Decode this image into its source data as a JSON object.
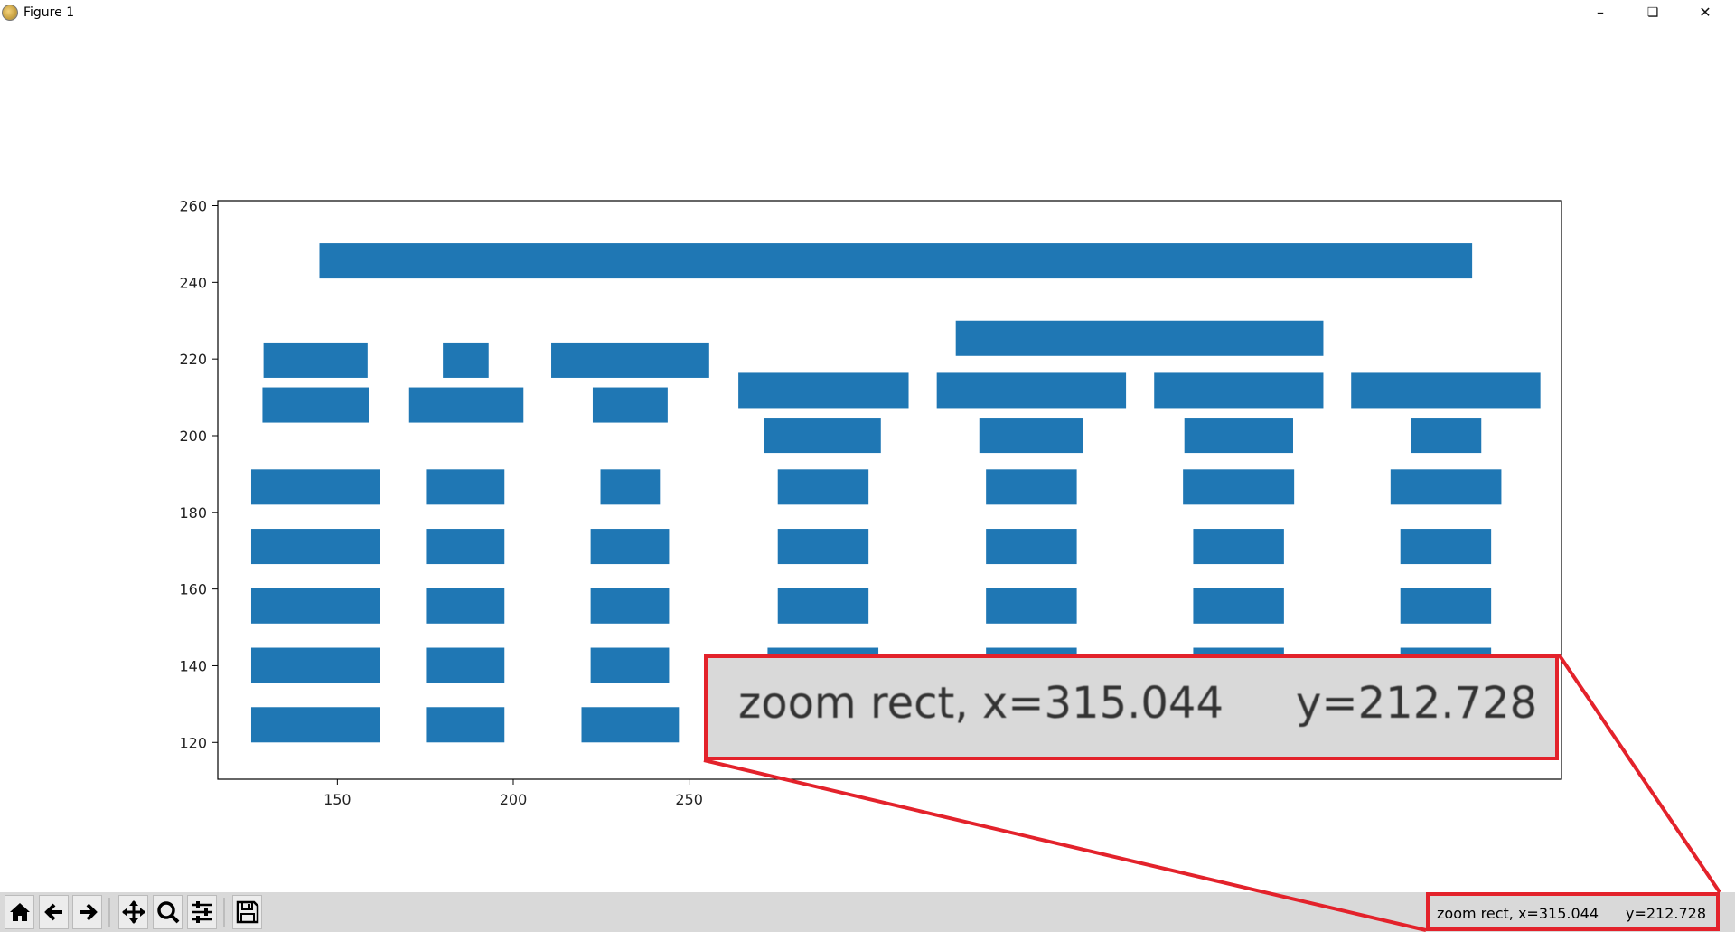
{
  "window": {
    "title": "Figure 1",
    "controls": {
      "minimize": "–",
      "restore": "❏",
      "close": "✕"
    }
  },
  "toolbar": {
    "buttons": [
      {
        "name": "home",
        "icon": "home-icon",
        "glyph": "⌂"
      },
      {
        "name": "back",
        "icon": "arrow-left-icon",
        "glyph": "←"
      },
      {
        "name": "forward",
        "icon": "arrow-right-icon",
        "glyph": "→"
      },
      {
        "name": "pan",
        "icon": "move-icon",
        "glyph": "✛"
      },
      {
        "name": "zoom",
        "icon": "magnifier-icon",
        "glyph": "⌕"
      },
      {
        "name": "configure-subplots",
        "icon": "sliders-icon",
        "glyph": "☰"
      },
      {
        "name": "save",
        "icon": "floppy-disk-icon",
        "glyph": "💾"
      }
    ]
  },
  "status": {
    "mode": "zoom rect, x=315.044",
    "y": "y=212.728"
  },
  "callout": {
    "mode": "zoom rect, x=315.044",
    "y": "y=212.728",
    "border_color": "#e3222b"
  },
  "chart_data": {
    "type": "bar",
    "orientation": "horizontal-broken-bars",
    "color": "#1f77b4",
    "xlim": [
      116,
      498
    ],
    "ylim": [
      110.4,
      261.3
    ],
    "xticks": [
      "150",
      "200",
      "250"
    ],
    "yticks": [
      "120",
      "140",
      "160",
      "180",
      "200",
      "220",
      "240",
      "260"
    ],
    "bar_height": 9.2,
    "bars": [
      {
        "x0": 144.9,
        "x1": 472.6,
        "y": 241.0
      },
      {
        "x0": 129.0,
        "x1": 158.6,
        "y": 215.1
      },
      {
        "x0": 128.7,
        "x1": 158.9,
        "y": 203.4
      },
      {
        "x0": 125.5,
        "x1": 162.1,
        "y": 182.0
      },
      {
        "x0": 125.5,
        "x1": 162.1,
        "y": 166.5
      },
      {
        "x0": 125.5,
        "x1": 162.1,
        "y": 151.0
      },
      {
        "x0": 125.5,
        "x1": 162.1,
        "y": 135.5
      },
      {
        "x0": 125.5,
        "x1": 162.1,
        "y": 120.0
      },
      {
        "x0": 180.0,
        "x1": 193.0,
        "y": 215.1
      },
      {
        "x0": 170.4,
        "x1": 202.9,
        "y": 203.4
      },
      {
        "x0": 175.2,
        "x1": 197.5,
        "y": 182.0
      },
      {
        "x0": 175.2,
        "x1": 197.5,
        "y": 166.5
      },
      {
        "x0": 175.2,
        "x1": 197.5,
        "y": 151.0
      },
      {
        "x0": 175.2,
        "x1": 197.5,
        "y": 135.5
      },
      {
        "x0": 175.2,
        "x1": 197.5,
        "y": 120.0
      },
      {
        "x0": 210.8,
        "x1": 255.7,
        "y": 215.1
      },
      {
        "x0": 222.6,
        "x1": 243.9,
        "y": 203.4
      },
      {
        "x0": 224.8,
        "x1": 241.7,
        "y": 182.0
      },
      {
        "x0": 222.0,
        "x1": 244.3,
        "y": 166.5
      },
      {
        "x0": 222.0,
        "x1": 244.3,
        "y": 151.0
      },
      {
        "x0": 222.0,
        "x1": 244.3,
        "y": 135.5
      },
      {
        "x0": 219.4,
        "x1": 247.1,
        "y": 120.0
      },
      {
        "x0": 264.0,
        "x1": 312.4,
        "y": 207.2
      },
      {
        "x0": 271.3,
        "x1": 304.5,
        "y": 195.5
      },
      {
        "x0": 275.2,
        "x1": 301.0,
        "y": 182.0
      },
      {
        "x0": 275.2,
        "x1": 301.0,
        "y": 166.5
      },
      {
        "x0": 275.2,
        "x1": 301.0,
        "y": 151.0
      },
      {
        "x0": 272.3,
        "x1": 303.8,
        "y": 135.5
      },
      {
        "x0": 325.8,
        "x1": 430.3,
        "y": 220.8
      },
      {
        "x0": 320.4,
        "x1": 374.2,
        "y": 207.2
      },
      {
        "x0": 332.5,
        "x1": 362.1,
        "y": 195.5
      },
      {
        "x0": 334.4,
        "x1": 360.2,
        "y": 182.0
      },
      {
        "x0": 334.4,
        "x1": 360.2,
        "y": 166.5
      },
      {
        "x0": 334.4,
        "x1": 360.2,
        "y": 151.0
      },
      {
        "x0": 334.4,
        "x1": 360.2,
        "y": 135.5
      },
      {
        "x0": 382.2,
        "x1": 430.3,
        "y": 207.2
      },
      {
        "x0": 390.8,
        "x1": 421.7,
        "y": 195.5
      },
      {
        "x0": 390.4,
        "x1": 422.0,
        "y": 182.0
      },
      {
        "x0": 393.3,
        "x1": 419.1,
        "y": 166.5
      },
      {
        "x0": 393.3,
        "x1": 419.1,
        "y": 151.0
      },
      {
        "x0": 393.3,
        "x1": 419.1,
        "y": 135.5
      },
      {
        "x0": 438.2,
        "x1": 492.0,
        "y": 207.2
      },
      {
        "x0": 455.1,
        "x1": 475.2,
        "y": 195.5
      },
      {
        "x0": 449.4,
        "x1": 480.9,
        "y": 182.0
      },
      {
        "x0": 452.2,
        "x1": 478.0,
        "y": 166.5
      },
      {
        "x0": 452.2,
        "x1": 478.0,
        "y": 151.0
      },
      {
        "x0": 452.2,
        "x1": 478.0,
        "y": 135.5
      }
    ]
  }
}
